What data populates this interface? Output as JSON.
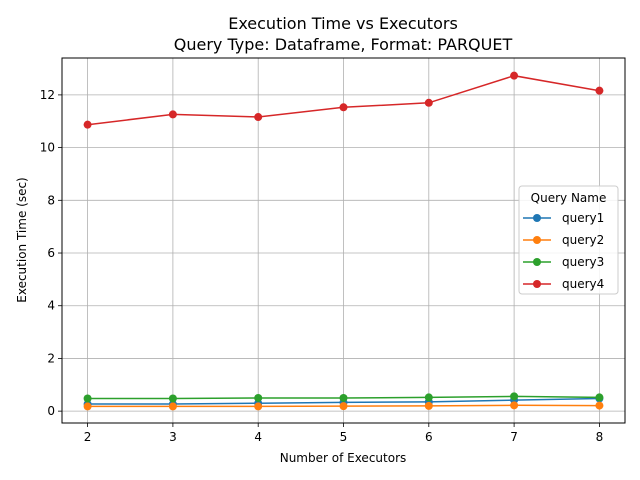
{
  "chart_data": {
    "type": "line",
    "title": "Execution Time vs Executors",
    "subtitle": "Query Type: Dataframe, Format: PARQUET",
    "xlabel": "Number of Executors",
    "ylabel": "Execution Time (sec)",
    "x": [
      2,
      3,
      4,
      5,
      6,
      7,
      8
    ],
    "xlim": [
      1.7,
      8.3
    ],
    "ylim": [
      -0.45,
      13.4
    ],
    "xticks": [
      2,
      3,
      4,
      5,
      6,
      7,
      8
    ],
    "yticks": [
      0,
      2,
      4,
      6,
      8,
      10,
      12
    ],
    "grid": true,
    "legend": {
      "title": "Query Name",
      "placement": "center-right"
    },
    "series": [
      {
        "name": "query1",
        "color": "#1f77b4",
        "values": [
          0.27,
          0.27,
          0.3,
          0.33,
          0.35,
          0.42,
          0.48
        ]
      },
      {
        "name": "query2",
        "color": "#ff7f0e",
        "values": [
          0.18,
          0.18,
          0.18,
          0.19,
          0.2,
          0.22,
          0.21
        ]
      },
      {
        "name": "query3",
        "color": "#2ca02c",
        "values": [
          0.48,
          0.48,
          0.5,
          0.5,
          0.52,
          0.56,
          0.52
        ]
      },
      {
        "name": "query4",
        "color": "#d62728",
        "values": [
          10.87,
          11.26,
          11.16,
          11.53,
          11.7,
          12.73,
          12.16
        ]
      }
    ]
  }
}
